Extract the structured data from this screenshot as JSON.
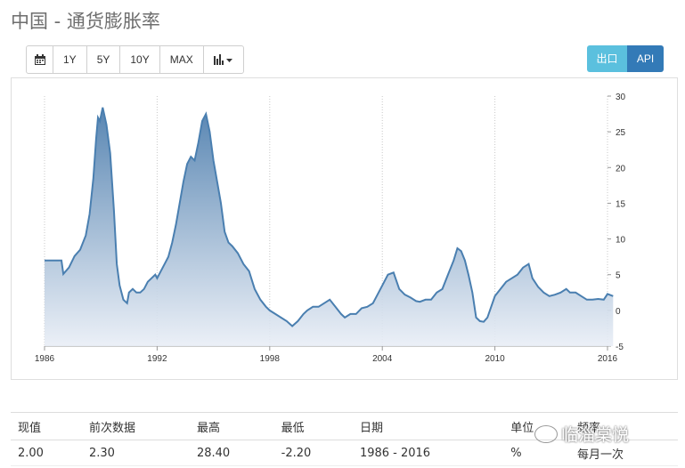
{
  "title": "中国 - 通货膨胀率",
  "toolbar": {
    "range_buttons": [
      "1Y",
      "5Y",
      "10Y",
      "MAX"
    ],
    "icons": [
      "calendar-icon",
      "bar-chart-dropdown-icon"
    ]
  },
  "actions": {
    "export_label": "出口",
    "api_label": "API"
  },
  "colors": {
    "line": "#4a7fb0",
    "fill_top": "#4f7fae",
    "fill_bottom": "#e9eef6",
    "export": "#5bc0de",
    "api": "#337ab7"
  },
  "chart_data": {
    "type": "area",
    "title": "",
    "xlabel": "",
    "ylabel": "",
    "xlim": [
      1986,
      2016
    ],
    "ylim": [
      -5,
      30
    ],
    "x_ticks": [
      "1986",
      "1992",
      "1998",
      "2004",
      "2010",
      "2016"
    ],
    "y_ticks": [
      "30",
      "25",
      "20",
      "15",
      "10",
      "5",
      "0",
      "-5"
    ],
    "grid": "vertical dotted",
    "series": [
      {
        "x": [
          1986.0,
          1986.9,
          1987.0,
          1987.3,
          1987.6,
          1987.9,
          1988.2,
          1988.4,
          1988.6,
          1988.75,
          1988.85,
          1988.95,
          1989.1,
          1989.3,
          1989.5,
          1989.7,
          1989.85,
          1990.0,
          1990.2,
          1990.4,
          1990.5,
          1990.7,
          1990.9,
          1991.1,
          1991.3,
          1991.5,
          1991.7,
          1991.9,
          1992.0,
          1992.2,
          1992.4,
          1992.6,
          1992.8,
          1993.0,
          1993.2,
          1993.4,
          1993.6,
          1993.8,
          1994.0,
          1994.2,
          1994.4,
          1994.6,
          1994.8,
          1995.0,
          1995.2,
          1995.4,
          1995.6,
          1995.8,
          1996.0,
          1996.3,
          1996.6,
          1996.9,
          1997.2,
          1997.5,
          1997.8,
          1998.0,
          1998.3,
          1998.6,
          1998.9,
          1999.2,
          1999.5,
          1999.8,
          2000.0,
          2000.3,
          2000.6,
          2000.9,
          2001.2,
          2001.5,
          2001.8,
          2002.0,
          2002.3,
          2002.6,
          2002.9,
          2003.2,
          2003.5,
          2003.8,
          2004.0,
          2004.3,
          2004.6,
          2004.9,
          2005.2,
          2005.5,
          2005.8,
          2006.0,
          2006.3,
          2006.6,
          2006.9,
          2007.2,
          2007.5,
          2007.8,
          2008.0,
          2008.2,
          2008.4,
          2008.6,
          2008.8,
          2009.0,
          2009.2,
          2009.4,
          2009.6,
          2009.8,
          2010.0,
          2010.3,
          2010.6,
          2010.9,
          2011.2,
          2011.5,
          2011.8,
          2012.0,
          2012.3,
          2012.6,
          2012.9,
          2013.2,
          2013.5,
          2013.8,
          2014.0,
          2014.3,
          2014.6,
          2014.9,
          2015.2,
          2015.5,
          2015.8,
          2016.0,
          2016.3
        ],
        "values": [
          7.0,
          7.0,
          5.1,
          6.0,
          7.6,
          8.5,
          10.5,
          13.5,
          18.5,
          24.0,
          27.0,
          26.5,
          28.4,
          26.0,
          22.0,
          14.0,
          6.5,
          3.5,
          1.5,
          1.0,
          2.5,
          3.0,
          2.5,
          2.5,
          3.0,
          4.0,
          4.5,
          5.0,
          4.5,
          5.5,
          6.5,
          7.5,
          9.5,
          12.0,
          15.0,
          18.0,
          20.5,
          21.5,
          21.0,
          23.5,
          26.5,
          27.5,
          25.0,
          21.0,
          18.0,
          15.0,
          11.0,
          9.5,
          9.0,
          8.0,
          6.5,
          5.5,
          3.0,
          1.5,
          0.5,
          0.0,
          -0.5,
          -1.0,
          -1.5,
          -2.2,
          -1.5,
          -0.5,
          0.0,
          0.5,
          0.5,
          1.0,
          1.5,
          0.5,
          -0.5,
          -1.0,
          -0.5,
          -0.5,
          0.3,
          0.5,
          1.0,
          2.5,
          3.5,
          5.0,
          5.3,
          3.0,
          2.2,
          1.8,
          1.3,
          1.2,
          1.5,
          1.5,
          2.5,
          3.0,
          5.0,
          7.0,
          8.7,
          8.3,
          7.0,
          4.9,
          2.5,
          -1.0,
          -1.5,
          -1.6,
          -1.0,
          0.5,
          2.0,
          3.0,
          4.0,
          4.5,
          5.0,
          6.0,
          6.5,
          4.5,
          3.3,
          2.5,
          2.0,
          2.2,
          2.5,
          3.0,
          2.5,
          2.5,
          2.0,
          1.5,
          1.5,
          1.6,
          1.5,
          2.3,
          2.0
        ]
      }
    ]
  },
  "table": {
    "headers": [
      "现值",
      "前次数据",
      "最高",
      "最低",
      "日期",
      "单位",
      "频率"
    ],
    "row": [
      "2.00",
      "2.30",
      "28.40",
      "-2.20",
      "1986 - 2016",
      "%",
      "每月一次"
    ]
  },
  "watermark": "临淄棠悦"
}
